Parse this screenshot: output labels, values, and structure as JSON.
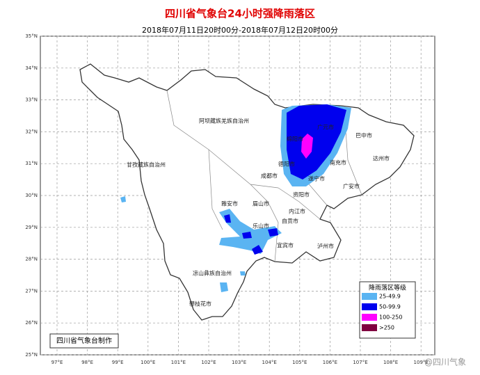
{
  "header": {
    "title": "四川省气象台24小时强降雨落区",
    "subtitle": "2018年07月11日20时00分-2018年07月12日20时00分"
  },
  "map": {
    "lat_ticks": [
      {
        "value": 35,
        "label": "35°N"
      },
      {
        "value": 34,
        "label": "34°N"
      },
      {
        "value": 33,
        "label": "33°N"
      },
      {
        "value": 32,
        "label": "32°N"
      },
      {
        "value": 31,
        "label": "31°N"
      },
      {
        "value": 30,
        "label": "30°N"
      },
      {
        "value": 29,
        "label": "29°N"
      },
      {
        "value": 28,
        "label": "28°N"
      },
      {
        "value": 27,
        "label": "27°N"
      },
      {
        "value": 26,
        "label": "26°N"
      },
      {
        "value": 25,
        "label": "25°N"
      }
    ],
    "lon_ticks": [
      {
        "value": 97,
        "label": "97°E"
      },
      {
        "value": 98,
        "label": "98°E"
      },
      {
        "value": 99,
        "label": "99°E"
      },
      {
        "value": 100,
        "label": "100°E"
      },
      {
        "value": 101,
        "label": "101°E"
      },
      {
        "value": 102,
        "label": "102°E"
      },
      {
        "value": 103,
        "label": "103°E"
      },
      {
        "value": 104,
        "label": "104°E"
      },
      {
        "value": 105,
        "label": "105°E"
      },
      {
        "value": 106,
        "label": "106°E"
      },
      {
        "value": 107,
        "label": "107°E"
      },
      {
        "value": 108,
        "label": "108°E"
      },
      {
        "value": 109,
        "label": "109°E"
      }
    ]
  },
  "places": [
    "阿坝藏族羌族自治州",
    "甘孜藏族自治州",
    "巴中市",
    "达州市",
    "南充市",
    "成都市",
    "德阳市",
    "绵阳市",
    "广元市",
    "遂宁市",
    "资阳市",
    "广安市",
    "雅安市",
    "眉山市",
    "内江市",
    "乐山市",
    "自贡市",
    "宜宾市",
    "泸州市",
    "凉山彝族自治州",
    "攀枝花市"
  ],
  "legend": {
    "title": "降雨落区等级",
    "items": [
      {
        "label": "25-49.9",
        "color": "#5ab4f2"
      },
      {
        "label": "50-99.9",
        "color": "#0000ee"
      },
      {
        "label": "100-250",
        "color": "#ff00ff"
      },
      {
        "label": ">250",
        "color": "#800040"
      }
    ]
  },
  "credit": "四川省气象台制作",
  "watermark": "@四川气象"
}
